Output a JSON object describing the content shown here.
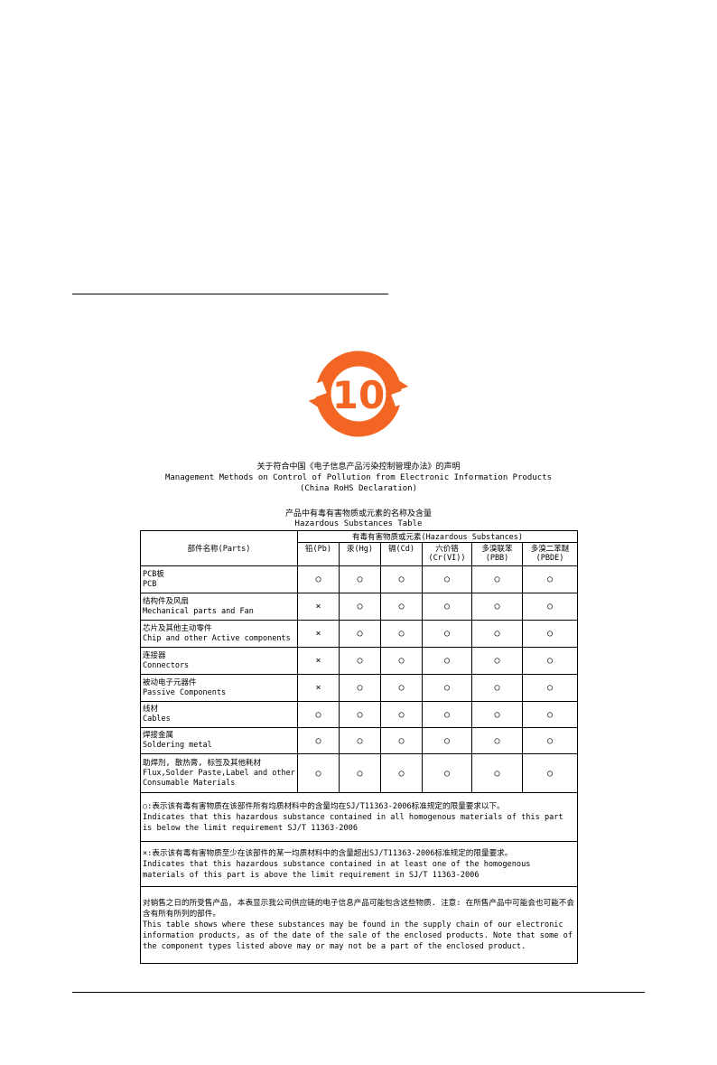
{
  "logo": {
    "number": "10",
    "color": "#f26522"
  },
  "heading": {
    "zh": "关于符合中国《电子信息产品污染控制管理办法》的声明",
    "en": "Management Methods on Control of Pollution from Electronic Information Products",
    "sub": "(China RoHS Declaration)"
  },
  "table_title": {
    "zh": "产品中有毒有害物质或元素的名称及含量",
    "en": "Hazardous Substances Table"
  },
  "table": {
    "parts_header": "部件名称(Parts)",
    "group_header": "有毒有害物质或元素(Hazardous Substances)",
    "columns": [
      [
        "铅(Pb)",
        ""
      ],
      [
        "汞(Hg)",
        ""
      ],
      [
        "镉(Cd)",
        ""
      ],
      [
        "六价铬",
        "(Cr(VI))"
      ],
      [
        "多溴联苯",
        "(PBB)"
      ],
      [
        "多溴二苯醚",
        "(PBDE)"
      ]
    ],
    "rows": [
      {
        "zh": "PCB板",
        "en": "PCB",
        "v": [
          "○",
          "○",
          "○",
          "○",
          "○",
          "○"
        ]
      },
      {
        "zh": "结构件及风扇",
        "en": "Mechanical parts and Fan",
        "v": [
          "×",
          "○",
          "○",
          "○",
          "○",
          "○"
        ]
      },
      {
        "zh": "芯片及其他主动零件",
        "en": "Chip and other Active components",
        "v": [
          "×",
          "○",
          "○",
          "○",
          "○",
          "○"
        ]
      },
      {
        "zh": "连接器",
        "en": "Connectors",
        "v": [
          "×",
          "○",
          "○",
          "○",
          "○",
          "○"
        ]
      },
      {
        "zh": "被动电子元器件",
        "en": "Passive Components",
        "v": [
          "×",
          "○",
          "○",
          "○",
          "○",
          "○"
        ]
      },
      {
        "zh": "线材",
        "en": "Cables",
        "v": [
          "○",
          "○",
          "○",
          "○",
          "○",
          "○"
        ]
      },
      {
        "zh": "焊接金属",
        "en": "Soldering metal",
        "v": [
          "○",
          "○",
          "○",
          "○",
          "○",
          "○"
        ]
      },
      {
        "zh": "助焊剂, 散热膏, 标签及其他耗材",
        "en": "Flux,Solder Paste,Label and other Consumable Materials",
        "v": [
          "○",
          "○",
          "○",
          "○",
          "○",
          "○"
        ]
      }
    ],
    "notes": [
      {
        "zh": "○:表示该有毒有害物质在该部件所有均质材料中的含量均在SJ/T11363-2006标准规定的限量要求以下。",
        "en": "Indicates that this hazardous substance contained in all homogenous materials of this part is below the limit requirement SJ/T 11363-2006"
      },
      {
        "zh": "×:表示该有毒有害物质至少在该部件的某一均质材料中的含量超出SJ/T11363-2006标准规定的限量要求。",
        "en": "Indicates that this hazardous substance contained in at least one of the homogenous materials of this part is above the limit requirement in SJ/T 11363-2006"
      },
      {
        "zh": "对销售之日的所受售产品, 本表显示我公司供应链的电子信息产品可能包含这些物质. 注意: 在所售产品中可能会也可能不会含有所有所列的部件。",
        "en": "This table shows where these substances may be found in the supply chain of our electronic information products, as of the date of the sale of the enclosed products. Note that some of the component types listed above may or may not be a part of the enclosed product."
      }
    ]
  }
}
